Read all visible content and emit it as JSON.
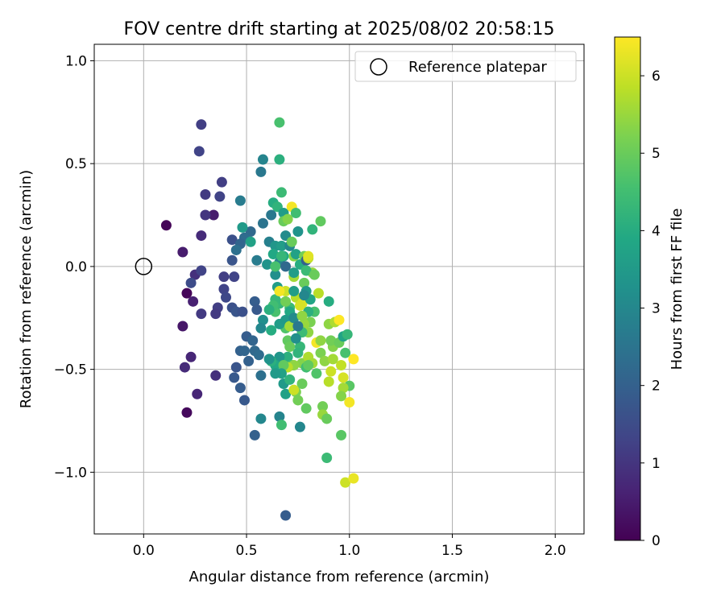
{
  "chart_data": {
    "type": "scatter",
    "title": "FOV centre drift starting at 2025/08/02 20:58:15",
    "xlabel": "Angular distance from reference (arcmin)",
    "ylabel": "Rotation from reference (arcmin)",
    "xlim": [
      -0.24,
      2.14
    ],
    "ylim": [
      -1.3,
      1.08
    ],
    "xticks": [
      0.0,
      0.5,
      1.0,
      1.5,
      2.0
    ],
    "xtick_labels": [
      "0.0",
      "0.5",
      "1.0",
      "1.5",
      "2.0"
    ],
    "yticks": [
      -1.0,
      -0.5,
      0.0,
      0.5,
      1.0
    ],
    "ytick_labels": [
      "−1.0",
      "−0.5",
      "0.0",
      "0.5",
      "1.0"
    ],
    "grid": true,
    "legend": {
      "placement": "top-right",
      "entries": [
        "Reference platepar"
      ]
    },
    "reference_point": {
      "x": 0.0,
      "y": 0.0,
      "label": "Reference platepar"
    },
    "colorbar": {
      "label": "Hours from first FF file",
      "colormap": "viridis",
      "range": [
        0,
        6.5
      ],
      "ticks": [
        0,
        1,
        2,
        3,
        4,
        5,
        6
      ],
      "tick_labels": [
        "0",
        "1",
        "2",
        "3",
        "4",
        "5",
        "6"
      ]
    },
    "points": [
      {
        "x": 0.11,
        "y": 0.2,
        "h": 0.05
      },
      {
        "x": 0.21,
        "y": -0.13,
        "h": 0.1
      },
      {
        "x": 0.21,
        "y": -0.71,
        "h": 0.15
      },
      {
        "x": 0.19,
        "y": -0.29,
        "h": 0.4
      },
      {
        "x": 0.19,
        "y": 0.07,
        "h": 0.5
      },
      {
        "x": 0.24,
        "y": -0.17,
        "h": 0.6
      },
      {
        "x": 0.23,
        "y": -0.44,
        "h": 0.7
      },
      {
        "x": 0.2,
        "y": -0.49,
        "h": 0.8
      },
      {
        "x": 0.26,
        "y": -0.62,
        "h": 0.7
      },
      {
        "x": 0.34,
        "y": 0.25,
        "h": 0.5
      },
      {
        "x": 0.35,
        "y": -0.53,
        "h": 0.9
      },
      {
        "x": 0.28,
        "y": 0.15,
        "h": 0.8
      },
      {
        "x": 0.25,
        "y": -0.04,
        "h": 0.9
      },
      {
        "x": 0.28,
        "y": -0.23,
        "h": 1.1
      },
      {
        "x": 0.28,
        "y": -0.02,
        "h": 1.3
      },
      {
        "x": 0.28,
        "y": 0.69,
        "h": 1.2
      },
      {
        "x": 0.27,
        "y": 0.56,
        "h": 1.3
      },
      {
        "x": 0.3,
        "y": 0.35,
        "h": 1.1
      },
      {
        "x": 0.3,
        "y": 0.25,
        "h": 1.0
      },
      {
        "x": 0.38,
        "y": 0.41,
        "h": 1.2
      },
      {
        "x": 0.37,
        "y": 0.34,
        "h": 1.3
      },
      {
        "x": 0.39,
        "y": -0.05,
        "h": 1.2
      },
      {
        "x": 0.39,
        "y": -0.11,
        "h": 1.3
      },
      {
        "x": 0.4,
        "y": -0.15,
        "h": 1.4
      },
      {
        "x": 0.36,
        "y": -0.2,
        "h": 1.2
      },
      {
        "x": 0.35,
        "y": -0.23,
        "h": 1.1
      },
      {
        "x": 0.23,
        "y": -0.08,
        "h": 1.5
      },
      {
        "x": 0.43,
        "y": 0.13,
        "h": 1.6
      },
      {
        "x": 0.43,
        "y": 0.03,
        "h": 1.7
      },
      {
        "x": 0.44,
        "y": -0.05,
        "h": 1.3
      },
      {
        "x": 0.43,
        "y": -0.2,
        "h": 1.6
      },
      {
        "x": 0.45,
        "y": -0.22,
        "h": 1.7
      },
      {
        "x": 0.45,
        "y": -0.49,
        "h": 1.7
      },
      {
        "x": 0.44,
        "y": -0.54,
        "h": 1.8
      },
      {
        "x": 0.47,
        "y": -0.59,
        "h": 1.9
      },
      {
        "x": 0.49,
        "y": -0.65,
        "h": 1.8
      },
      {
        "x": 0.48,
        "y": -0.22,
        "h": 1.6
      },
      {
        "x": 0.47,
        "y": -0.41,
        "h": 2.0
      },
      {
        "x": 0.49,
        "y": -0.41,
        "h": 2.1
      },
      {
        "x": 0.5,
        "y": -0.34,
        "h": 1.9
      },
      {
        "x": 0.51,
        "y": -0.46,
        "h": 2.0
      },
      {
        "x": 0.53,
        "y": -0.36,
        "h": 2.1
      },
      {
        "x": 0.54,
        "y": -0.41,
        "h": 2.2
      },
      {
        "x": 0.54,
        "y": -0.17,
        "h": 1.9
      },
      {
        "x": 0.55,
        "y": -0.21,
        "h": 1.8
      },
      {
        "x": 0.56,
        "y": -0.43,
        "h": 2.3
      },
      {
        "x": 0.54,
        "y": -0.82,
        "h": 2.0
      },
      {
        "x": 0.57,
        "y": -0.53,
        "h": 2.4
      },
      {
        "x": 0.52,
        "y": 0.17,
        "h": 2.2
      },
      {
        "x": 0.49,
        "y": 0.14,
        "h": 2.3
      },
      {
        "x": 0.47,
        "y": 0.11,
        "h": 2.1
      },
      {
        "x": 0.45,
        "y": 0.08,
        "h": 2.4
      },
      {
        "x": 0.47,
        "y": 0.32,
        "h": 2.7
      },
      {
        "x": 0.57,
        "y": 0.46,
        "h": 2.6
      },
      {
        "x": 0.58,
        "y": 0.52,
        "h": 2.9
      },
      {
        "x": 0.58,
        "y": 0.21,
        "h": 2.5
      },
      {
        "x": 0.55,
        "y": 0.03,
        "h": 2.7
      },
      {
        "x": 0.58,
        "y": -0.26,
        "h": 3.2
      },
      {
        "x": 0.57,
        "y": -0.3,
        "h": 3.0
      },
      {
        "x": 0.57,
        "y": -0.74,
        "h": 3.0
      },
      {
        "x": 0.48,
        "y": 0.19,
        "h": 3.5
      },
      {
        "x": 0.52,
        "y": 0.12,
        "h": 3.7
      },
      {
        "x": 0.61,
        "y": 0.12,
        "h": 2.8
      },
      {
        "x": 0.6,
        "y": 0.01,
        "h": 3.3
      },
      {
        "x": 0.63,
        "y": 0.31,
        "h": 4.0
      },
      {
        "x": 0.65,
        "y": 0.29,
        "h": 4.2
      },
      {
        "x": 0.62,
        "y": 0.25,
        "h": 2.6
      },
      {
        "x": 0.64,
        "y": 0.1,
        "h": 3.4
      },
      {
        "x": 0.66,
        "y": 0.7,
        "h": 4.6
      },
      {
        "x": 0.66,
        "y": 0.52,
        "h": 4.1
      },
      {
        "x": 0.67,
        "y": 0.36,
        "h": 4.4
      },
      {
        "x": 0.68,
        "y": 0.26,
        "h": 3.6
      },
      {
        "x": 0.68,
        "y": 0.22,
        "h": 5.0
      },
      {
        "x": 0.7,
        "y": 0.23,
        "h": 5.3
      },
      {
        "x": 0.72,
        "y": 0.29,
        "h": 6.4
      },
      {
        "x": 0.74,
        "y": 0.26,
        "h": 4.5
      },
      {
        "x": 0.69,
        "y": 0.15,
        "h": 3.1
      },
      {
        "x": 0.67,
        "y": 0.1,
        "h": 3.6
      },
      {
        "x": 0.68,
        "y": 0.05,
        "h": 3.9
      },
      {
        "x": 0.66,
        "y": 0.02,
        "h": 2.9
      },
      {
        "x": 0.64,
        "y": -0.04,
        "h": 3.2
      },
      {
        "x": 0.65,
        "y": -0.1,
        "h": 3.6
      },
      {
        "x": 0.64,
        "y": -0.16,
        "h": 4.3
      },
      {
        "x": 0.64,
        "y": -0.22,
        "h": 4.6
      },
      {
        "x": 0.69,
        "y": -0.3,
        "h": 4.7
      },
      {
        "x": 0.7,
        "y": -0.36,
        "h": 4.9
      },
      {
        "x": 0.71,
        "y": -0.39,
        "h": 5.0
      },
      {
        "x": 0.7,
        "y": -0.44,
        "h": 4.1
      },
      {
        "x": 0.66,
        "y": -0.44,
        "h": 3.4
      },
      {
        "x": 0.64,
        "y": -0.48,
        "h": 3.9
      },
      {
        "x": 0.66,
        "y": -0.73,
        "h": 2.9
      },
      {
        "x": 0.67,
        "y": -0.77,
        "h": 4.5
      },
      {
        "x": 0.69,
        "y": -1.21,
        "h": 1.9
      },
      {
        "x": 0.68,
        "y": -0.57,
        "h": 3.5
      },
      {
        "x": 0.69,
        "y": -0.62,
        "h": 3.7
      },
      {
        "x": 0.71,
        "y": -0.55,
        "h": 4.2
      },
      {
        "x": 0.72,
        "y": -0.48,
        "h": 4.5
      },
      {
        "x": 0.74,
        "y": -0.61,
        "h": 5.2
      },
      {
        "x": 0.75,
        "y": -0.65,
        "h": 5.1
      },
      {
        "x": 0.76,
        "y": -0.78,
        "h": 3.0
      },
      {
        "x": 0.79,
        "y": -0.69,
        "h": 4.9
      },
      {
        "x": 0.77,
        "y": -0.57,
        "h": 5.0
      },
      {
        "x": 0.73,
        "y": -0.6,
        "h": 6.0
      },
      {
        "x": 0.7,
        "y": -0.26,
        "h": 6.3
      },
      {
        "x": 0.69,
        "y": -0.12,
        "h": 6.0
      },
      {
        "x": 0.66,
        "y": -0.12,
        "h": 6.4
      },
      {
        "x": 0.74,
        "y": -0.15,
        "h": 5.8
      },
      {
        "x": 0.77,
        "y": -0.18,
        "h": 6.2
      },
      {
        "x": 0.73,
        "y": -0.05,
        "h": 5.6
      },
      {
        "x": 0.73,
        "y": 0.05,
        "h": 5.3
      },
      {
        "x": 0.74,
        "y": 0.06,
        "h": 3.7
      },
      {
        "x": 0.76,
        "y": 0.01,
        "h": 4.0
      },
      {
        "x": 0.75,
        "y": 0.17,
        "h": 3.3
      },
      {
        "x": 0.78,
        "y": 0.05,
        "h": 5.1
      },
      {
        "x": 0.79,
        "y": 0.03,
        "h": 2.0
      },
      {
        "x": 0.8,
        "y": 0.04,
        "h": 5.9
      },
      {
        "x": 0.82,
        "y": -0.03,
        "h": 5.5
      },
      {
        "x": 0.82,
        "y": 0.18,
        "h": 4.2
      },
      {
        "x": 0.86,
        "y": 0.22,
        "h": 4.9
      },
      {
        "x": 0.85,
        "y": -0.13,
        "h": 5.8
      },
      {
        "x": 0.83,
        "y": -0.22,
        "h": 4.6
      },
      {
        "x": 0.81,
        "y": -0.27,
        "h": 5.2
      },
      {
        "x": 0.8,
        "y": -0.32,
        "h": 5.4
      },
      {
        "x": 0.78,
        "y": -0.28,
        "h": 5.5
      },
      {
        "x": 0.77,
        "y": -0.32,
        "h": 4.4
      },
      {
        "x": 0.76,
        "y": -0.39,
        "h": 4.3
      },
      {
        "x": 0.74,
        "y": -0.35,
        "h": 3.2
      },
      {
        "x": 0.72,
        "y": -0.29,
        "h": 3.8
      },
      {
        "x": 0.77,
        "y": -0.47,
        "h": 5.3
      },
      {
        "x": 0.79,
        "y": -0.49,
        "h": 4.5
      },
      {
        "x": 0.8,
        "y": -0.44,
        "h": 5.7
      },
      {
        "x": 0.82,
        "y": -0.47,
        "h": 5.6
      },
      {
        "x": 0.84,
        "y": -0.37,
        "h": 6.4
      },
      {
        "x": 0.86,
        "y": -0.42,
        "h": 5.2
      },
      {
        "x": 0.88,
        "y": -0.46,
        "h": 5.4
      },
      {
        "x": 0.87,
        "y": -0.68,
        "h": 5.1
      },
      {
        "x": 0.87,
        "y": -0.72,
        "h": 5.5
      },
      {
        "x": 0.89,
        "y": -0.74,
        "h": 5.0
      },
      {
        "x": 0.89,
        "y": -0.93,
        "h": 4.4
      },
      {
        "x": 0.9,
        "y": -0.56,
        "h": 5.8
      },
      {
        "x": 0.91,
        "y": -0.51,
        "h": 6.0
      },
      {
        "x": 0.92,
        "y": -0.45,
        "h": 5.6
      },
      {
        "x": 0.92,
        "y": -0.39,
        "h": 5.3
      },
      {
        "x": 0.91,
        "y": -0.36,
        "h": 5.1
      },
      {
        "x": 0.9,
        "y": -0.28,
        "h": 5.4
      },
      {
        "x": 0.9,
        "y": -0.17,
        "h": 4.0
      },
      {
        "x": 0.93,
        "y": -0.27,
        "h": 5.7
      },
      {
        "x": 0.95,
        "y": -0.26,
        "h": 6.5
      },
      {
        "x": 0.95,
        "y": -0.37,
        "h": 5.0
      },
      {
        "x": 0.97,
        "y": -0.34,
        "h": 3.8
      },
      {
        "x": 0.99,
        "y": -0.33,
        "h": 4.3
      },
      {
        "x": 0.98,
        "y": -0.42,
        "h": 4.6
      },
      {
        "x": 0.96,
        "y": -0.48,
        "h": 5.9
      },
      {
        "x": 0.97,
        "y": -0.54,
        "h": 6.1
      },
      {
        "x": 1.0,
        "y": -0.58,
        "h": 4.8
      },
      {
        "x": 0.97,
        "y": -0.59,
        "h": 5.6
      },
      {
        "x": 0.96,
        "y": -0.63,
        "h": 5.3
      },
      {
        "x": 1.0,
        "y": -0.66,
        "h": 6.4
      },
      {
        "x": 0.96,
        "y": -0.82,
        "h": 4.8
      },
      {
        "x": 1.02,
        "y": -0.45,
        "h": 6.5
      },
      {
        "x": 0.98,
        "y": -1.05,
        "h": 6.0
      },
      {
        "x": 1.02,
        "y": -1.03,
        "h": 6.3
      },
      {
        "x": 0.86,
        "y": -0.36,
        "h": 5.4
      },
      {
        "x": 0.84,
        "y": -0.52,
        "h": 4.7
      },
      {
        "x": 0.8,
        "y": -0.48,
        "h": 4.9
      },
      {
        "x": 0.75,
        "y": -0.42,
        "h": 4.2
      },
      {
        "x": 0.73,
        "y": -0.48,
        "h": 5.4
      },
      {
        "x": 0.7,
        "y": -0.49,
        "h": 5.8
      },
      {
        "x": 0.68,
        "y": -0.48,
        "h": 4.9
      },
      {
        "x": 0.67,
        "y": -0.52,
        "h": 3.7
      },
      {
        "x": 0.64,
        "y": -0.52,
        "h": 3.5
      },
      {
        "x": 0.62,
        "y": -0.46,
        "h": 4.1
      },
      {
        "x": 0.61,
        "y": -0.45,
        "h": 3.3
      },
      {
        "x": 0.62,
        "y": -0.31,
        "h": 4.0
      },
      {
        "x": 0.66,
        "y": -0.28,
        "h": 3.6
      },
      {
        "x": 0.66,
        "y": -0.18,
        "h": 4.3
      },
      {
        "x": 0.63,
        "y": -0.19,
        "h": 4.5
      },
      {
        "x": 0.61,
        "y": -0.21,
        "h": 4.1
      },
      {
        "x": 0.63,
        "y": 0.06,
        "h": 3.9
      },
      {
        "x": 0.64,
        "y": 0.0,
        "h": 4.6
      },
      {
        "x": 0.67,
        "y": 0.05,
        "h": 4.3
      },
      {
        "x": 0.69,
        "y": 0.0,
        "h": 2.2
      },
      {
        "x": 0.71,
        "y": 0.1,
        "h": 3.0
      },
      {
        "x": 0.72,
        "y": 0.12,
        "h": 5.0
      },
      {
        "x": 0.73,
        "y": -0.03,
        "h": 3.6
      },
      {
        "x": 0.78,
        "y": -0.08,
        "h": 5.0
      },
      {
        "x": 0.79,
        "y": -0.12,
        "h": 3.4
      },
      {
        "x": 0.81,
        "y": -0.16,
        "h": 3.8
      },
      {
        "x": 0.8,
        "y": -0.22,
        "h": 4.1
      },
      {
        "x": 0.73,
        "y": -0.12,
        "h": 3.6
      },
      {
        "x": 0.71,
        "y": -0.2,
        "h": 4.4
      },
      {
        "x": 0.69,
        "y": -0.17,
        "h": 5.1
      },
      {
        "x": 0.71,
        "y": -0.22,
        "h": 3.9
      },
      {
        "x": 0.69,
        "y": -0.26,
        "h": 3.5
      },
      {
        "x": 0.71,
        "y": -0.29,
        "h": 5.6
      },
      {
        "x": 0.73,
        "y": -0.25,
        "h": 3.1
      },
      {
        "x": 0.75,
        "y": -0.29,
        "h": 2.6
      },
      {
        "x": 0.77,
        "y": -0.24,
        "h": 5.4
      },
      {
        "x": 0.78,
        "y": -0.14,
        "h": 3.0
      },
      {
        "x": 0.76,
        "y": -0.19,
        "h": 6.1
      },
      {
        "x": 0.79,
        "y": -0.02,
        "h": 4.4
      },
      {
        "x": 0.8,
        "y": 0.05,
        "h": 6.2
      },
      {
        "x": 0.83,
        "y": -0.04,
        "h": 5.0
      }
    ]
  }
}
